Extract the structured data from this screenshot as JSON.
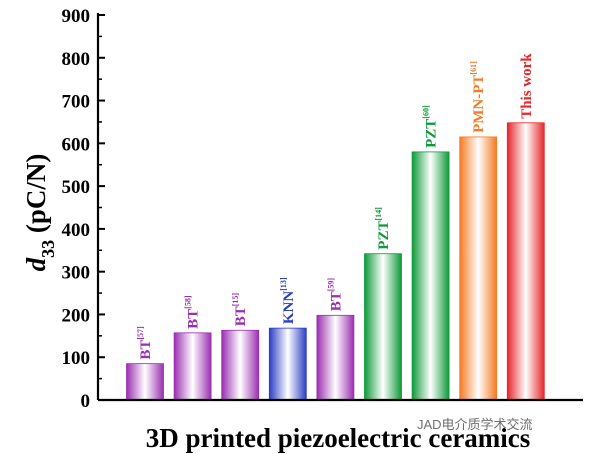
{
  "chart_data": {
    "type": "bar",
    "xlabel": "3D printed piezoelectric ceramics",
    "ylabel": {
      "main": "d",
      "sub": "33",
      "unit": " (pC/N)"
    },
    "ylim": [
      0,
      900
    ],
    "yticks": [
      0,
      100,
      200,
      300,
      400,
      500,
      600,
      700,
      800,
      900
    ],
    "grid": false,
    "bars": [
      {
        "label": "BT",
        "ref": "[57]",
        "value": 85,
        "color": "#9b2fb1"
      },
      {
        "label": "BT",
        "ref": "[58]",
        "value": 157,
        "color": "#9b2fb1"
      },
      {
        "label": "BT",
        "ref": "[15]",
        "value": 163,
        "color": "#9b2fb1"
      },
      {
        "label": "KNN",
        "ref": "[13]",
        "value": 168,
        "color": "#2b3fc4"
      },
      {
        "label": "BT",
        "ref": "[59]",
        "value": 198,
        "color": "#9b2fb1"
      },
      {
        "label": "PZT",
        "ref": "[14]",
        "value": 342,
        "color": "#0e9a3a"
      },
      {
        "label": "PZT",
        "ref": "[60]",
        "value": 580,
        "color": "#0e9a3a"
      },
      {
        "label": "PMN-PT",
        "ref": "[61]",
        "value": 615,
        "color": "#f57a23"
      },
      {
        "label": "This work",
        "ref": "",
        "value": 648,
        "color": "#e6262a"
      }
    ]
  },
  "watermark": "JAD电介质学术交流"
}
